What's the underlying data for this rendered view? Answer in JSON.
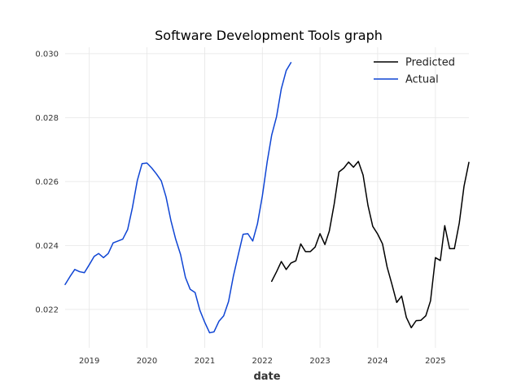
{
  "chart_data": {
    "type": "line",
    "title": "Software Development Tools graph",
    "xlabel": "date",
    "ylabel": "",
    "x_axis": "date",
    "xlim": [
      "2018-08-01",
      "2025-08-01"
    ],
    "ylim": [
      0.0208,
      0.0302
    ],
    "x_ticks": [
      "2019",
      "2020",
      "2021",
      "2022",
      "2023",
      "2024",
      "2025"
    ],
    "y_ticks": [
      "0.022",
      "0.024",
      "0.026",
      "0.028",
      "0.030"
    ],
    "grid": true,
    "legend_position": "top-right",
    "series": [
      {
        "name": "Predicted",
        "color": "#000000",
        "points": [
          [
            "2022-03-01",
            0.02288
          ],
          [
            "2022-04-01",
            0.02318
          ],
          [
            "2022-05-01",
            0.0235
          ],
          [
            "2022-06-01",
            0.02325
          ],
          [
            "2022-07-01",
            0.02345
          ],
          [
            "2022-08-01",
            0.02352
          ],
          [
            "2022-09-01",
            0.02405
          ],
          [
            "2022-10-01",
            0.02381
          ],
          [
            "2022-11-01",
            0.02381
          ],
          [
            "2022-12-01",
            0.02395
          ],
          [
            "2023-01-01",
            0.02437
          ],
          [
            "2023-02-01",
            0.02403
          ],
          [
            "2023-03-01",
            0.02445
          ],
          [
            "2023-04-01",
            0.0253
          ],
          [
            "2023-05-01",
            0.0263
          ],
          [
            "2023-06-01",
            0.02642
          ],
          [
            "2023-07-01",
            0.02661
          ],
          [
            "2023-08-01",
            0.02645
          ],
          [
            "2023-09-01",
            0.02663
          ],
          [
            "2023-10-01",
            0.0262
          ],
          [
            "2023-11-01",
            0.02525
          ],
          [
            "2023-12-01",
            0.0246
          ],
          [
            "2024-01-01",
            0.02436
          ],
          [
            "2024-02-01",
            0.02405
          ],
          [
            "2024-03-01",
            0.02333
          ],
          [
            "2024-04-01",
            0.02278
          ],
          [
            "2024-05-01",
            0.02222
          ],
          [
            "2024-06-01",
            0.02242
          ],
          [
            "2024-07-01",
            0.02175
          ],
          [
            "2024-08-01",
            0.02143
          ],
          [
            "2024-09-01",
            0.02165
          ],
          [
            "2024-10-01",
            0.02166
          ],
          [
            "2024-11-01",
            0.0218
          ],
          [
            "2024-12-01",
            0.02227
          ],
          [
            "2025-01-01",
            0.02362
          ],
          [
            "2025-02-01",
            0.02353
          ],
          [
            "2025-03-01",
            0.02462
          ],
          [
            "2025-04-01",
            0.0239
          ],
          [
            "2025-05-01",
            0.0239
          ],
          [
            "2025-06-01",
            0.0247
          ],
          [
            "2025-07-01",
            0.02585
          ],
          [
            "2025-08-01",
            0.0266
          ]
        ]
      },
      {
        "name": "Actual",
        "color": "#0f45d4",
        "points": [
          [
            "2018-08-01",
            0.02278
          ],
          [
            "2018-09-01",
            0.02303
          ],
          [
            "2018-10-01",
            0.02325
          ],
          [
            "2018-11-01",
            0.02318
          ],
          [
            "2018-12-01",
            0.02315
          ],
          [
            "2019-01-01",
            0.0234
          ],
          [
            "2019-02-01",
            0.02366
          ],
          [
            "2019-03-01",
            0.02375
          ],
          [
            "2019-04-01",
            0.02362
          ],
          [
            "2019-05-01",
            0.02375
          ],
          [
            "2019-06-01",
            0.02408
          ],
          [
            "2019-07-01",
            0.02414
          ],
          [
            "2019-08-01",
            0.0242
          ],
          [
            "2019-09-01",
            0.0245
          ],
          [
            "2019-10-01",
            0.02518
          ],
          [
            "2019-11-01",
            0.02603
          ],
          [
            "2019-12-01",
            0.02656
          ],
          [
            "2020-01-01",
            0.02658
          ],
          [
            "2020-02-01",
            0.02642
          ],
          [
            "2020-03-01",
            0.02624
          ],
          [
            "2020-04-01",
            0.02602
          ],
          [
            "2020-05-01",
            0.02552
          ],
          [
            "2020-06-01",
            0.02478
          ],
          [
            "2020-07-01",
            0.0242
          ],
          [
            "2020-08-01",
            0.02372
          ],
          [
            "2020-09-01",
            0.023
          ],
          [
            "2020-10-01",
            0.02263
          ],
          [
            "2020-11-01",
            0.02253
          ],
          [
            "2020-12-01",
            0.02198
          ],
          [
            "2021-01-01",
            0.0216
          ],
          [
            "2021-02-01",
            0.02127
          ],
          [
            "2021-03-01",
            0.0213
          ],
          [
            "2021-04-01",
            0.02163
          ],
          [
            "2021-05-01",
            0.0218
          ],
          [
            "2021-06-01",
            0.02225
          ],
          [
            "2021-07-01",
            0.02303
          ],
          [
            "2021-08-01",
            0.0237
          ],
          [
            "2021-09-01",
            0.02435
          ],
          [
            "2021-10-01",
            0.02437
          ],
          [
            "2021-11-01",
            0.02414
          ],
          [
            "2021-12-01",
            0.02468
          ],
          [
            "2022-01-01",
            0.02555
          ],
          [
            "2022-02-01",
            0.02663
          ],
          [
            "2022-03-01",
            0.02745
          ],
          [
            "2022-04-01",
            0.02803
          ],
          [
            "2022-05-01",
            0.0289
          ],
          [
            "2022-06-01",
            0.02947
          ],
          [
            "2022-07-01",
            0.02972
          ]
        ]
      }
    ]
  }
}
